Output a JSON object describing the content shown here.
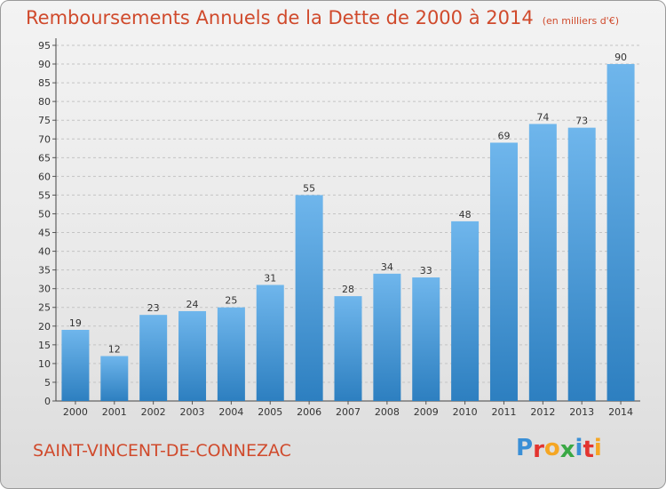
{
  "title": "Remboursements Annuels de la Dette de 2000 à 2014",
  "subtitle": "(en milliers d'€)",
  "town": "SAINT-VINCENT-DE-CONNEZAC",
  "logo": {
    "letters": [
      "P",
      "r",
      "o",
      "x",
      "i",
      "t",
      "i"
    ],
    "colors": [
      "#3a8fd6",
      "#e3342f",
      "#f5a623",
      "#3aa845",
      "#3a8fd6",
      "#e3342f",
      "#f5a623"
    ]
  },
  "colors": {
    "bar_light": "#6fb6ec",
    "bar_dark": "#2d7fc0",
    "title": "#d04a2c"
  },
  "chart_data": {
    "type": "bar",
    "categories": [
      "2000",
      "2001",
      "2002",
      "2003",
      "2004",
      "2005",
      "2006",
      "2007",
      "2008",
      "2009",
      "2010",
      "2011",
      "2012",
      "2013",
      "2014"
    ],
    "values": [
      19,
      12,
      23,
      24,
      25,
      31,
      55,
      28,
      34,
      33,
      48,
      69,
      74,
      73,
      90
    ],
    "ylim": [
      0,
      95
    ],
    "yticks": [
      0,
      5,
      10,
      15,
      20,
      25,
      30,
      35,
      40,
      45,
      50,
      55,
      60,
      65,
      70,
      75,
      80,
      85,
      90,
      95
    ],
    "grid": true,
    "data_labels": true
  }
}
